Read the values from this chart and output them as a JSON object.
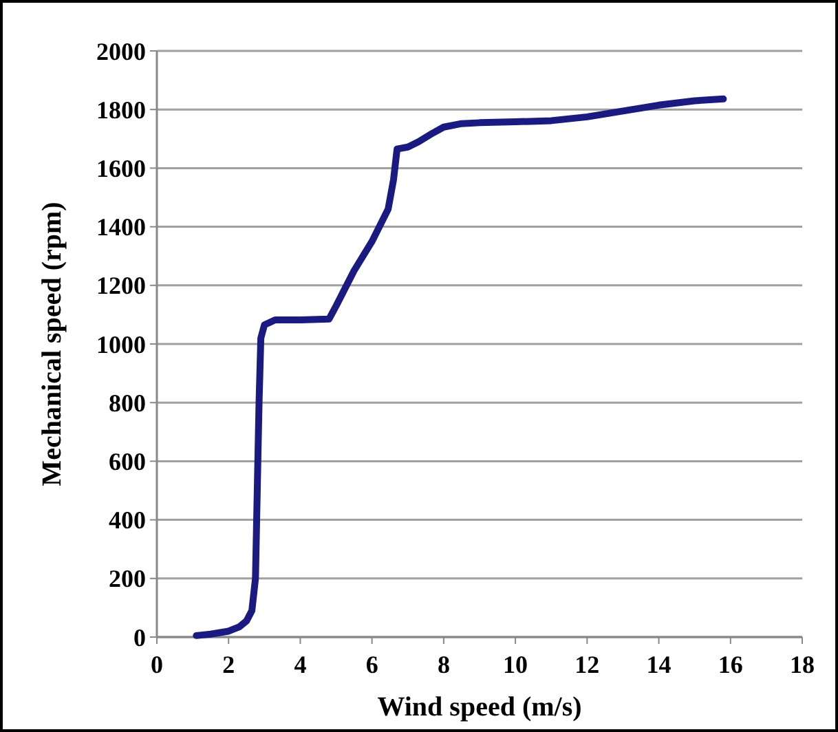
{
  "chart_data": {
    "type": "line",
    "xlabel": "Wind speed (m/s)",
    "ylabel": "Mechanical speed (rpm)",
    "xlim": [
      0,
      18
    ],
    "xticks": [
      0,
      2,
      4,
      6,
      8,
      10,
      12,
      14,
      16,
      18
    ],
    "ylim": [
      0,
      2000
    ],
    "yticks": [
      0,
      200,
      400,
      600,
      800,
      1000,
      1200,
      1400,
      1600,
      1800,
      2000
    ],
    "grid": "y",
    "marker": "none",
    "line_style": "solid",
    "series": [
      {
        "color": "#1a1a80",
        "x": [
          1.1,
          1.5,
          2.0,
          2.3,
          2.5,
          2.65,
          2.75,
          2.8,
          2.85,
          2.9,
          3.0,
          3.3,
          4.0,
          4.8,
          5.0,
          5.5,
          6.0,
          6.45,
          6.6,
          6.7,
          7.0,
          7.3,
          7.7,
          8.0,
          8.5,
          9.0,
          10.0,
          11.0,
          12.0,
          13.0,
          14.0,
          15.0,
          15.8
        ],
        "values": [
          5,
          10,
          20,
          35,
          55,
          90,
          200,
          500,
          800,
          1020,
          1065,
          1082,
          1082,
          1085,
          1130,
          1250,
          1350,
          1460,
          1560,
          1665,
          1672,
          1690,
          1720,
          1740,
          1752,
          1755,
          1758,
          1762,
          1775,
          1795,
          1815,
          1830,
          1836
        ]
      }
    ]
  }
}
